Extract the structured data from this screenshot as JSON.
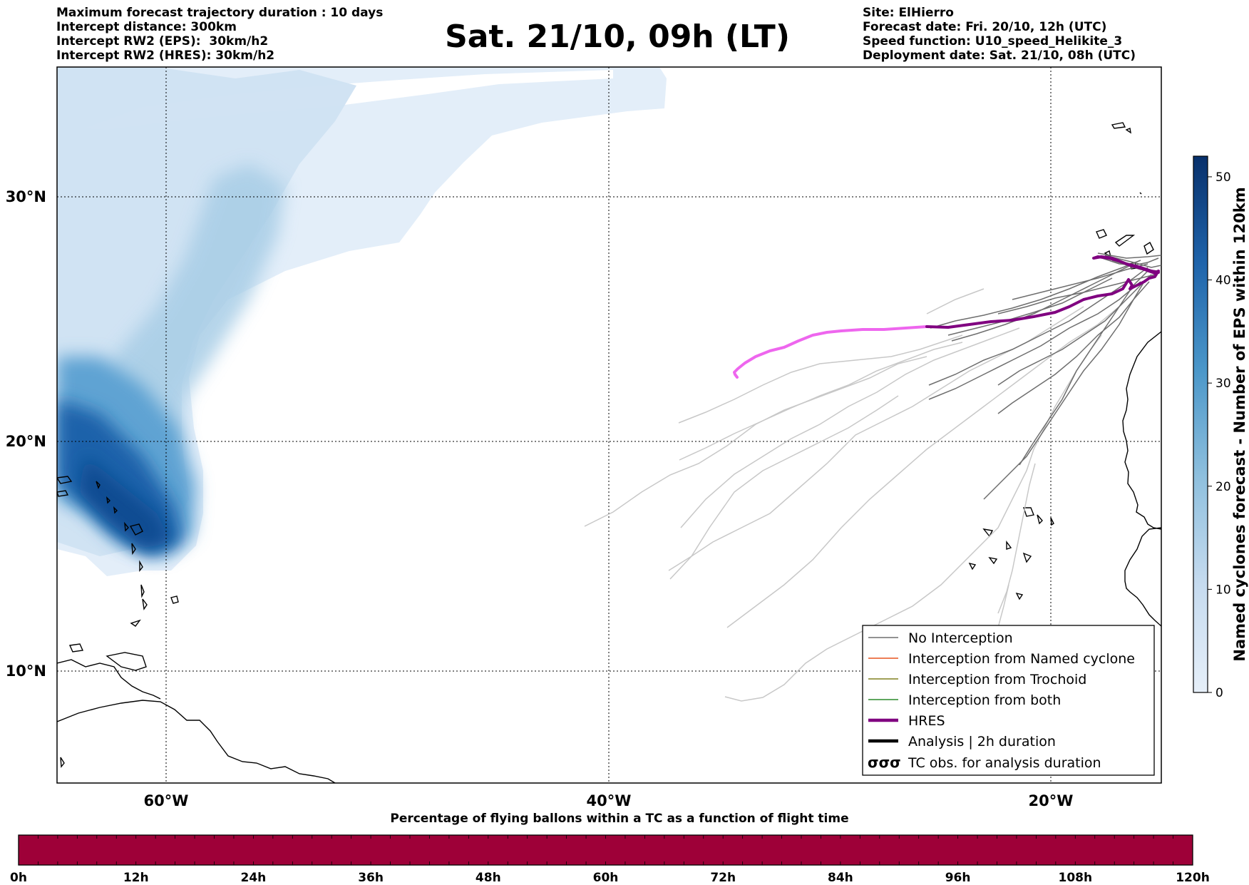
{
  "header_left": [
    "Maximum forecast trajectory duration : 10 days",
    "Intercept distance: 300km",
    "Intercept RW2 (EPS):  30km/h2",
    "Intercept RW2 (HRES): 30km/h2"
  ],
  "title": "Sat. 21/10, 09h (LT)",
  "header_right": [
    "Site: ElHierro",
    "Forecast date: Fri. 20/10, 12h (UTC)",
    "Speed function: U10_speed_Helikite_3",
    "Deployment date: Sat. 21/10, 08h (UTC)"
  ],
  "map": {
    "lat_labels": [
      "30°N",
      "20°N",
      "10°N"
    ],
    "lon_labels": [
      "60°W",
      "40°W",
      "20°W"
    ],
    "colors": {
      "hres_track": "#800080",
      "hres_extension": "#ee66ee",
      "no_interception": "#6e6e6e",
      "eps_light": "#c8c8c8",
      "named_cyclone": "#e8541f",
      "trochoid": "#808020",
      "both": "#2b8a2b",
      "analysis": "#000000"
    }
  },
  "legend": [
    {
      "label": "No Interception",
      "style": "thin-gray"
    },
    {
      "label": "Interception from Named cyclone",
      "style": "thin-orange"
    },
    {
      "label": "Interception from Trochoid",
      "style": "thin-olive"
    },
    {
      "label": "Interception from both",
      "style": "thin-green"
    },
    {
      "label": "HRES",
      "style": "thick-purple"
    },
    {
      "label": "Analysis | 2h duration",
      "style": "thick-black"
    },
    {
      "label": "TC obs. for analysis duration",
      "style": "cyclone-symbols",
      "symbol_text": "σσσ"
    }
  ],
  "colorbar": {
    "label": "Named cyclones forecast - Number of EPS within 120km",
    "ticks": [
      "0",
      "10",
      "20",
      "30",
      "40",
      "50"
    ],
    "max": 52,
    "colors": [
      "#e4eef9",
      "#c6dbef",
      "#9ecae1",
      "#4292c6",
      "#2171b5",
      "#08306b"
    ]
  },
  "timebar": {
    "title": "Percentage of flying ballons within a TC as a function of flight time",
    "ticks": [
      "0h",
      "12h",
      "24h",
      "36h",
      "48h",
      "60h",
      "72h",
      "84h",
      "96h",
      "108h",
      "120h"
    ],
    "fill_color": "#9e0038"
  }
}
